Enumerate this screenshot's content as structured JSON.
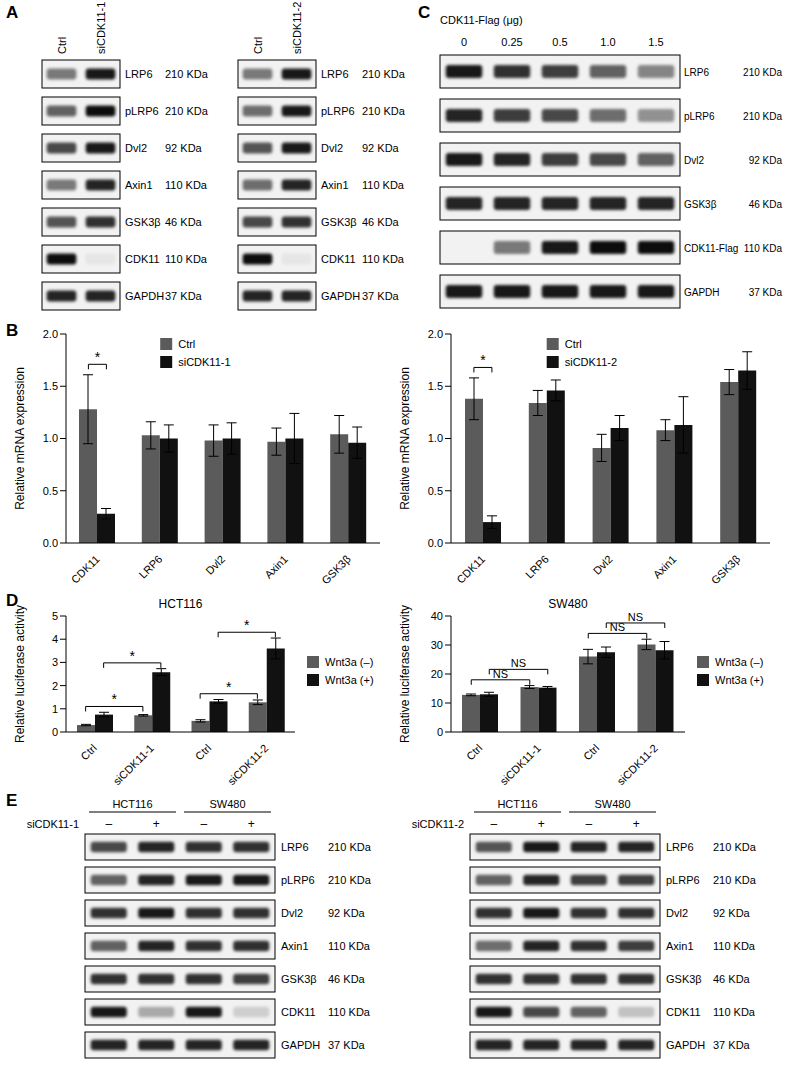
{
  "panel_labels": [
    "A",
    "B",
    "C",
    "D",
    "E"
  ],
  "blots": {
    "A": [
      {
        "lanes": [
          "Ctrl",
          "siCDK11-1"
        ],
        "rows": [
          {
            "label": "LRP6",
            "size": "210 KDa",
            "intensity": [
              0.5,
              0.9
            ]
          },
          {
            "label": "pLRP6",
            "size": "210 KDa",
            "intensity": [
              0.6,
              0.95
            ]
          },
          {
            "label": "Dvl2",
            "size": "92 KDa",
            "intensity": [
              0.7,
              0.9
            ]
          },
          {
            "label": "Axin1",
            "size": "110 KDa",
            "intensity": [
              0.5,
              0.85
            ]
          },
          {
            "label": "GSK3β",
            "size": "46 KDa",
            "intensity": [
              0.65,
              0.8
            ]
          },
          {
            "label": "CDK11",
            "size": "110 KDa",
            "intensity": [
              0.95,
              0.05
            ]
          },
          {
            "label": "GAPDH",
            "size": "37 KDa",
            "intensity": [
              0.85,
              0.85
            ]
          }
        ]
      },
      {
        "lanes": [
          "Ctrl",
          "siCDK11-2"
        ],
        "rows": [
          {
            "label": "LRP6",
            "size": "210 KDa",
            "intensity": [
              0.5,
              0.9
            ]
          },
          {
            "label": "pLRP6",
            "size": "210 KDa",
            "intensity": [
              0.55,
              0.9
            ]
          },
          {
            "label": "Dvl2",
            "size": "92 KDa",
            "intensity": [
              0.65,
              0.9
            ]
          },
          {
            "label": "Axin1",
            "size": "110 KDa",
            "intensity": [
              0.55,
              0.85
            ]
          },
          {
            "label": "GSK3β",
            "size": "46 KDa",
            "intensity": [
              0.7,
              0.8
            ]
          },
          {
            "label": "CDK11",
            "size": "110 KDa",
            "intensity": [
              0.95,
              0.05
            ]
          },
          {
            "label": "GAPDH",
            "size": "37 KDa",
            "intensity": [
              0.85,
              0.85
            ]
          }
        ]
      }
    ],
    "C": [
      {
        "header": "CDK11-Flag (μg)",
        "lanes": [
          "0",
          "0.25",
          "0.5",
          "1.0",
          "1.5"
        ],
        "rows": [
          {
            "label": "LRP6",
            "size": "210 KDa",
            "intensity": [
              0.9,
              0.8,
              0.75,
              0.6,
              0.45
            ]
          },
          {
            "label": "pLRP6",
            "size": "210 KDa",
            "intensity": [
              0.85,
              0.75,
              0.7,
              0.55,
              0.4
            ]
          },
          {
            "label": "Dvl2",
            "size": "92 KDa",
            "intensity": [
              0.9,
              0.85,
              0.75,
              0.7,
              0.6
            ]
          },
          {
            "label": "GSK3β",
            "size": "46 KDa",
            "intensity": [
              0.85,
              0.85,
              0.85,
              0.85,
              0.85
            ]
          },
          {
            "label": "CDK11-Flag",
            "size": "110 KDa",
            "intensity": [
              0.0,
              0.5,
              0.9,
              0.95,
              0.95
            ]
          },
          {
            "label": "GAPDH",
            "size": "37 KDa",
            "intensity": [
              0.9,
              0.9,
              0.9,
              0.9,
              0.9
            ]
          }
        ]
      }
    ],
    "E": [
      {
        "groups": [
          "HCT116",
          "SW480"
        ],
        "treatment": "siCDK11-1",
        "lanes": [
          "–",
          "+",
          "–",
          "+"
        ],
        "rows": [
          {
            "label": "LRP6",
            "size": "210 KDa",
            "intensity": [
              0.7,
              0.85,
              0.8,
              0.8
            ]
          },
          {
            "label": "pLRP6",
            "size": "210 KDa",
            "intensity": [
              0.6,
              0.85,
              0.9,
              0.9
            ]
          },
          {
            "label": "Dvl2",
            "size": "92 KDa",
            "intensity": [
              0.8,
              0.9,
              0.8,
              0.8
            ]
          },
          {
            "label": "Axin1",
            "size": "110 KDa",
            "intensity": [
              0.6,
              0.85,
              0.8,
              0.8
            ]
          },
          {
            "label": "GSK3β",
            "size": "46 KDa",
            "intensity": [
              0.8,
              0.8,
              0.8,
              0.75
            ]
          },
          {
            "label": "CDK11",
            "size": "110 KDa",
            "intensity": [
              0.9,
              0.3,
              0.9,
              0.15
            ]
          },
          {
            "label": "GAPDH",
            "size": "37 KDa",
            "intensity": [
              0.85,
              0.85,
              0.85,
              0.85
            ]
          }
        ]
      },
      {
        "groups": [
          "HCT116",
          "SW480"
        ],
        "treatment": "siCDK11-2",
        "lanes": [
          "–",
          "+",
          "–",
          "+"
        ],
        "rows": [
          {
            "label": "LRP6",
            "size": "210 KDa",
            "intensity": [
              0.65,
              0.9,
              0.85,
              0.85
            ]
          },
          {
            "label": "pLRP6",
            "size": "210 KDa",
            "intensity": [
              0.6,
              0.85,
              0.75,
              0.75
            ]
          },
          {
            "label": "Dvl2",
            "size": "92 KDa",
            "intensity": [
              0.8,
              0.9,
              0.8,
              0.8
            ]
          },
          {
            "label": "Axin1",
            "size": "110 KDa",
            "intensity": [
              0.55,
              0.85,
              0.8,
              0.75
            ]
          },
          {
            "label": "GSK3β",
            "size": "46 KDa",
            "intensity": [
              0.8,
              0.8,
              0.8,
              0.8
            ]
          },
          {
            "label": "CDK11",
            "size": "110 KDa",
            "intensity": [
              0.9,
              0.7,
              0.6,
              0.2
            ]
          },
          {
            "label": "GAPDH",
            "size": "37 KDa",
            "intensity": [
              0.85,
              0.85,
              0.85,
              0.85
            ]
          }
        ]
      }
    ]
  },
  "chart_data": [
    {
      "type": "bar",
      "categories": [
        "CDK11",
        "LRP6",
        "Dvl2",
        "Axin1",
        "GSK3β"
      ],
      "series": [
        {
          "name": "Ctrl",
          "color": "#5b5b5b",
          "values": [
            1.28,
            1.03,
            0.98,
            0.97,
            1.04
          ],
          "errors": [
            0.33,
            0.13,
            0.15,
            0.13,
            0.18
          ]
        },
        {
          "name": "siCDK11-1",
          "color": "#111111",
          "values": [
            0.28,
            1.0,
            1.0,
            1.0,
            0.96
          ],
          "errors": [
            0.05,
            0.13,
            0.15,
            0.24,
            0.15
          ]
        }
      ],
      "ylim": [
        0,
        2
      ],
      "yticks": [
        {
          "value": 0,
          "label": "0.0"
        },
        {
          "value": 0.5,
          "label": "0.5"
        },
        {
          "value": 1,
          "label": "1.0"
        },
        {
          "value": 1.5,
          "label": "1.5"
        },
        {
          "value": 2,
          "label": "2.0"
        }
      ],
      "y_label": "Relative mRNA expression",
      "legend": "top",
      "grid": false,
      "comparisons": [
        {
          "label": "*",
          "from": [
            0,
            0
          ],
          "to": [
            0,
            1
          ]
        }
      ]
    },
    {
      "type": "bar",
      "categories": [
        "CDK11",
        "LRP6",
        "Dvl2",
        "Axin1",
        "GSK3β"
      ],
      "series": [
        {
          "name": "Ctrl",
          "color": "#5b5b5b",
          "values": [
            1.38,
            1.34,
            0.91,
            1.08,
            1.54
          ],
          "errors": [
            0.2,
            0.12,
            0.13,
            0.1,
            0.12
          ]
        },
        {
          "name": "siCDK11-2",
          "color": "#111111",
          "values": [
            0.2,
            1.46,
            1.1,
            1.13,
            1.65
          ],
          "errors": [
            0.06,
            0.1,
            0.12,
            0.27,
            0.18
          ]
        }
      ],
      "ylim": [
        0,
        2
      ],
      "yticks": [
        {
          "value": 0,
          "label": "0.0"
        },
        {
          "value": 0.5,
          "label": "0.5"
        },
        {
          "value": 1,
          "label": "1.0"
        },
        {
          "value": 1.5,
          "label": "1.5"
        },
        {
          "value": 2,
          "label": "2.0"
        }
      ],
      "y_label": "Relative mRNA expression",
      "legend": "top",
      "grid": false,
      "comparisons": [
        {
          "label": "*",
          "from": [
            0,
            0
          ],
          "to": [
            0,
            1
          ]
        }
      ]
    },
    {
      "type": "bar",
      "title": "HCT116",
      "categories": [
        "Ctrl",
        "siCDK11-1",
        "Ctrl",
        "siCDK11-2"
      ],
      "series": [
        {
          "name": "Wnt3a (–)",
          "color": "#5b5b5b",
          "values": [
            0.3,
            0.72,
            0.48,
            1.28
          ],
          "errors": [
            0.03,
            0.03,
            0.05,
            0.1
          ]
        },
        {
          "name": "Wnt3a (+)",
          "color": "#111111",
          "values": [
            0.75,
            2.58,
            1.32,
            3.6
          ],
          "errors": [
            0.1,
            0.15,
            0.08,
            0.45
          ]
        }
      ],
      "ylim": [
        0,
        5
      ],
      "yticks": [
        0,
        1,
        2,
        3,
        4,
        5
      ],
      "y_label": "Relative luciferase activity",
      "legend": "right",
      "grid": false,
      "comparisons": [
        {
          "label": "*",
          "from": [
            0,
            0
          ],
          "to": [
            1,
            0
          ]
        },
        {
          "label": "*",
          "from": [
            0,
            1
          ],
          "to": [
            1,
            1
          ]
        },
        {
          "label": "*",
          "from": [
            2,
            0
          ],
          "to": [
            3,
            0
          ]
        },
        {
          "label": "*",
          "from": [
            2,
            1
          ],
          "to": [
            3,
            1
          ]
        }
      ]
    },
    {
      "type": "bar",
      "title": "SW480",
      "categories": [
        "Ctrl",
        "siCDK11-1",
        "Ctrl",
        "siCDK11-2"
      ],
      "series": [
        {
          "name": "Wnt3a (–)",
          "color": "#5b5b5b",
          "values": [
            12.8,
            15.5,
            26,
            30.2
          ],
          "errors": [
            0.3,
            0.5,
            2.5,
            1.8
          ]
        },
        {
          "name": "Wnt3a (+)",
          "color": "#111111",
          "values": [
            13,
            15.3,
            27.5,
            28.2
          ],
          "errors": [
            0.7,
            0.4,
            1.8,
            3
          ]
        }
      ],
      "ylim": [
        0,
        40
      ],
      "yticks": [
        0,
        10,
        20,
        30,
        40
      ],
      "y_label": "Relative luciferase activity",
      "legend": "right",
      "grid": false,
      "comparisons": [
        {
          "label": "NS",
          "from": [
            0,
            0
          ],
          "to": [
            1,
            0
          ]
        },
        {
          "label": "NS",
          "from": [
            0,
            1
          ],
          "to": [
            1,
            1
          ]
        },
        {
          "label": "NS",
          "from": [
            2,
            0
          ],
          "to": [
            3,
            0
          ]
        },
        {
          "label": "NS",
          "from": [
            2,
            1
          ],
          "to": [
            3,
            1
          ]
        }
      ]
    }
  ]
}
